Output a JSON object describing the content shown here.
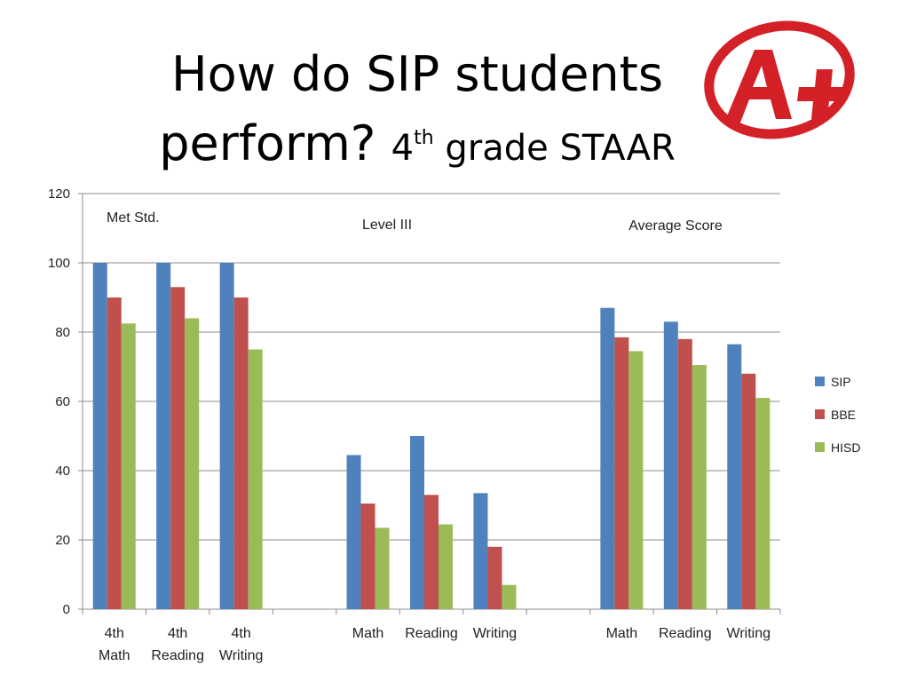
{
  "title": {
    "line1": "How do SIP students",
    "line2": "perform?",
    "grade": "4",
    "grade_suffix": "th",
    "rest": "grade STAAR"
  },
  "badge": {
    "icon": "a-plus-grade-icon",
    "text": "A+",
    "color": "#d42027"
  },
  "chart_data": {
    "type": "bar",
    "ylim": [
      0,
      120
    ],
    "yticks": [
      0,
      20,
      40,
      60,
      80,
      100,
      120
    ],
    "grid": true,
    "legend_position": "right",
    "groups": [
      {
        "label": "Met Std.",
        "categories": [
          [
            "4th",
            "Math"
          ],
          [
            "4th",
            "Reading"
          ],
          [
            "4th",
            "Writing"
          ]
        ]
      },
      {
        "label": "Level III",
        "categories": [
          [
            "Math"
          ],
          [
            "Reading"
          ],
          [
            "Writing"
          ]
        ]
      },
      {
        "label": "Average Score",
        "categories": [
          [
            "Math"
          ],
          [
            "Reading"
          ],
          [
            "Writing"
          ]
        ]
      }
    ],
    "series": [
      {
        "name": "SIP",
        "color": "#4f81bd",
        "values": [
          100,
          100,
          100,
          44.5,
          50,
          33.5,
          87,
          83,
          76.5
        ]
      },
      {
        "name": "BBE",
        "color": "#c0504d",
        "values": [
          90,
          93,
          90,
          30.5,
          33,
          18,
          78.5,
          78,
          68
        ]
      },
      {
        "name": "HISD",
        "color": "#9bbb59",
        "values": [
          82.5,
          84,
          75,
          23.5,
          24.5,
          7,
          74.5,
          70.5,
          61
        ]
      }
    ]
  }
}
